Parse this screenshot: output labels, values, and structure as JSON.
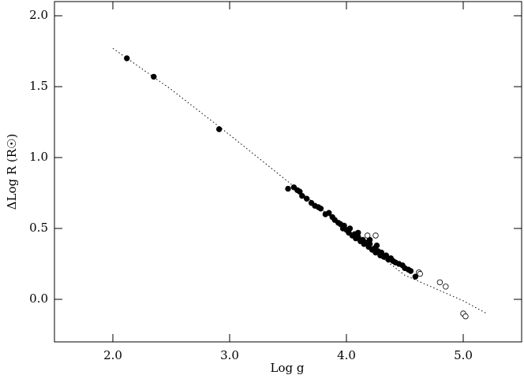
{
  "chart_data": {
    "type": "scatter",
    "xlabel": "Log g",
    "ylabel": "ΔLog R (R☉)",
    "xlim": [
      1.5,
      5.5
    ],
    "ylim": [
      -0.3,
      2.1
    ],
    "xticks": [
      {
        "value": 2,
        "label": "2.0"
      },
      {
        "value": 3,
        "label": "3.0"
      },
      {
        "value": 4,
        "label": "4.0"
      },
      {
        "value": 5,
        "label": "5.0"
      }
    ],
    "yticks": [
      {
        "value": 0,
        "label": "0.0"
      },
      {
        "value": 0.5,
        "label": "0.5"
      },
      {
        "value": 1,
        "label": "1.0"
      },
      {
        "value": 1.5,
        "label": "1.5"
      },
      {
        "value": 2,
        "label": "2.0"
      }
    ],
    "series": [
      {
        "marker": "filled",
        "color": "#000000",
        "x": [
          2.12,
          2.35,
          2.91,
          3.5,
          3.55,
          3.58,
          3.6,
          3.62,
          3.66,
          3.7,
          3.73,
          3.76,
          3.78,
          3.82,
          3.85,
          3.88,
          3.9,
          3.93,
          3.95,
          3.97,
          3.98,
          4.0,
          4.02,
          4.03,
          4.05,
          4.07,
          4.08,
          4.1,
          4.12,
          4.14,
          4.15,
          4.17,
          4.19,
          4.2,
          4.22,
          4.24,
          4.25,
          4.27,
          4.29,
          4.3,
          4.32,
          4.34,
          4.36,
          4.38,
          4.4,
          4.42,
          4.45,
          4.48,
          4.5,
          4.53,
          4.55,
          4.59,
          4.1,
          4.2,
          4.26
        ],
        "values": [
          1.7,
          1.57,
          1.2,
          0.78,
          0.79,
          0.77,
          0.76,
          0.73,
          0.71,
          0.68,
          0.66,
          0.65,
          0.64,
          0.6,
          0.61,
          0.58,
          0.56,
          0.54,
          0.53,
          0.5,
          0.52,
          0.49,
          0.47,
          0.5,
          0.45,
          0.46,
          0.43,
          0.44,
          0.41,
          0.42,
          0.39,
          0.4,
          0.37,
          0.39,
          0.35,
          0.36,
          0.33,
          0.34,
          0.31,
          0.33,
          0.3,
          0.31,
          0.28,
          0.29,
          0.27,
          0.26,
          0.25,
          0.24,
          0.22,
          0.21,
          0.2,
          0.16,
          0.47,
          0.42,
          0.38
        ]
      },
      {
        "marker": "open",
        "color": "#000000",
        "x": [
          4.18,
          4.25,
          4.62,
          4.63,
          4.8,
          4.85,
          5.0,
          5.02
        ],
        "values": [
          0.45,
          0.45,
          0.19,
          0.18,
          0.12,
          0.09,
          -0.1,
          -0.12
        ]
      },
      {
        "marker": "dotted-line",
        "color": "#000000",
        "x": [
          2.0,
          2.5,
          3.0,
          3.5,
          4.0,
          4.5,
          5.0,
          5.2
        ],
        "values": [
          1.77,
          1.48,
          1.16,
          0.83,
          0.49,
          0.17,
          -0.01,
          -0.1
        ]
      }
    ]
  }
}
